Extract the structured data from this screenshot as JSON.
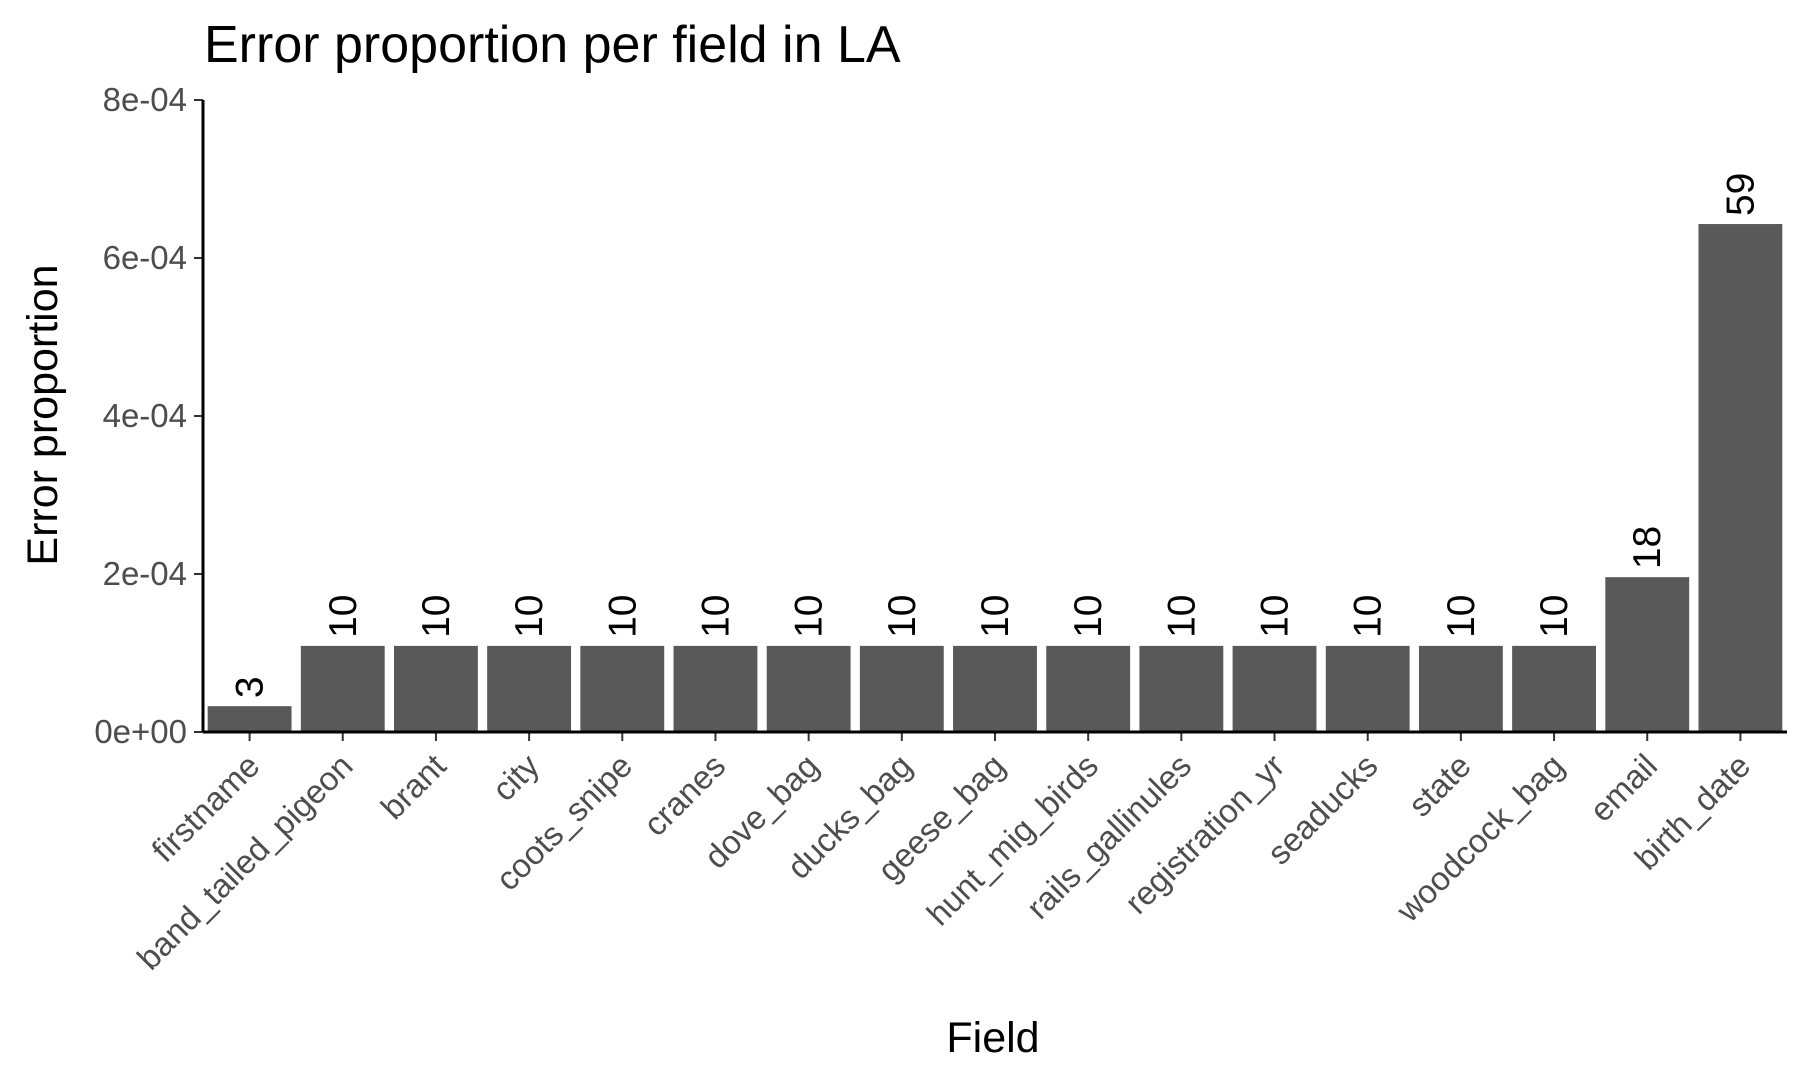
{
  "chart_data": {
    "type": "bar",
    "title": "Error proportion per field in LA",
    "xlabel": "Field",
    "ylabel": "Error proportion",
    "categories": [
      "firstname",
      "band_tailed_pigeon",
      "brant",
      "city",
      "coots_snipe",
      "cranes",
      "dove_bag",
      "ducks_bag",
      "geese_bag",
      "hunt_mig_birds",
      "rails_gallinules",
      "registration_yr",
      "seaducks",
      "state",
      "woodcock_bag",
      "email",
      "birth_date"
    ],
    "values": [
      3.27e-05,
      0.000109,
      0.000109,
      0.000109,
      0.000109,
      0.000109,
      0.000109,
      0.000109,
      0.000109,
      0.000109,
      0.000109,
      0.000109,
      0.000109,
      0.000109,
      0.000109,
      0.000196,
      0.000643
    ],
    "bar_labels": [
      "3",
      "10",
      "10",
      "10",
      "10",
      "10",
      "10",
      "10",
      "10",
      "10",
      "10",
      "10",
      "10",
      "10",
      "10",
      "18",
      "59"
    ],
    "ylim": [
      0,
      0.0008
    ],
    "yticks": [
      {
        "value": 0,
        "label": "0e+00"
      },
      {
        "value": 0.0002,
        "label": "2e-04"
      },
      {
        "value": 0.0004,
        "label": "4e-04"
      },
      {
        "value": 0.0006,
        "label": "6e-04"
      },
      {
        "value": 0.0008,
        "label": "8e-04"
      }
    ],
    "grid": false,
    "legend": "none",
    "colors": {
      "bar": "#595959",
      "axis": "#000000",
      "tick_label": "#4d4d4d",
      "text": "#000000"
    }
  }
}
